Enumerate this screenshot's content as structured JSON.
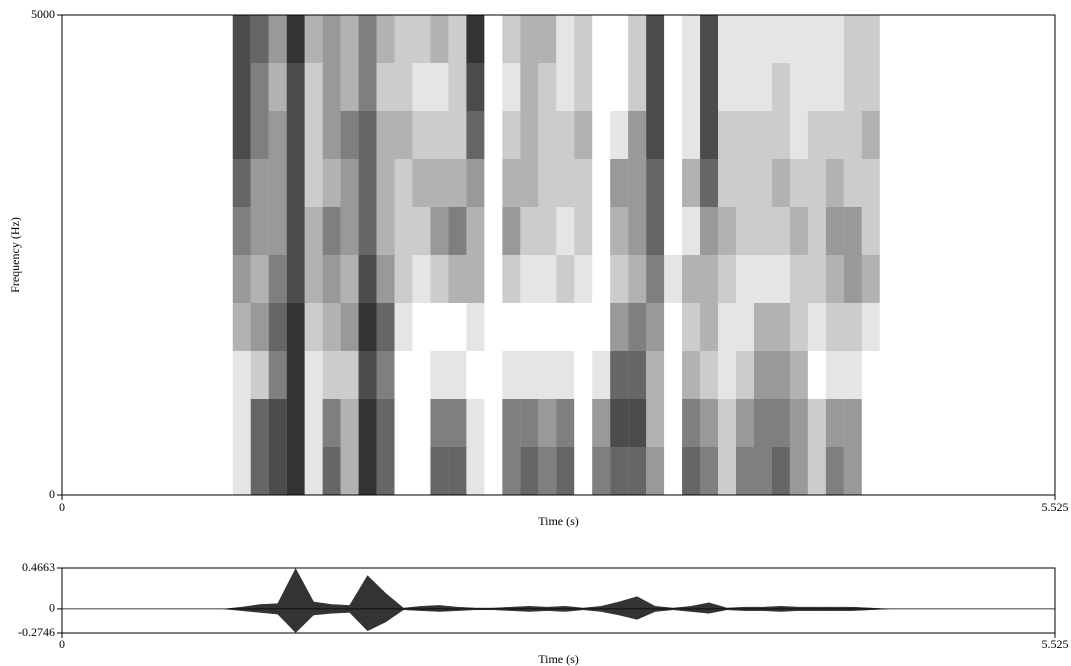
{
  "chart_data": [
    {
      "type": "heatmap",
      "x_label": "Time (s)",
      "y_label": "Frequency (Hz)",
      "xlim": [
        0,
        5.525
      ],
      "ylim": [
        0,
        5000
      ],
      "xticks": [
        0,
        5.525
      ],
      "yticks": [
        0,
        5000
      ],
      "x": [
        0.9,
        1.0,
        1.1,
        1.2,
        1.3,
        1.4,
        1.5,
        1.6,
        1.7,
        1.8,
        1.9,
        2.0,
        2.1,
        2.2,
        2.3,
        2.4,
        2.5,
        2.6,
        2.7,
        2.8,
        2.9,
        3.0,
        3.1,
        3.2,
        3.3,
        3.4,
        3.5,
        3.6,
        3.7,
        3.8,
        3.9,
        4.0,
        4.1,
        4.2,
        4.3,
        4.4,
        4.5,
        4.6
      ],
      "y": [
        250,
        750,
        1250,
        1750,
        2250,
        2750,
        3250,
        3750,
        4250,
        4750
      ],
      "z": [
        [
          0,
          0.1,
          0.6,
          0.7,
          0.8,
          0.1,
          0.6,
          0.3,
          0.8,
          0.6,
          0,
          0,
          0.6,
          0.6,
          0.1,
          0,
          0.5,
          0.6,
          0.5,
          0.6,
          0,
          0.5,
          0.6,
          0.6,
          0.4,
          0,
          0.6,
          0.5,
          0.2,
          0.5,
          0.5,
          0.6,
          0.4,
          0.2,
          0.5,
          0.4,
          0,
          0
        ],
        [
          0,
          0.1,
          0.6,
          0.7,
          0.8,
          0.1,
          0.5,
          0.3,
          0.8,
          0.6,
          0,
          0,
          0.5,
          0.5,
          0.1,
          0,
          0.5,
          0.5,
          0.4,
          0.5,
          0,
          0.4,
          0.7,
          0.7,
          0.3,
          0,
          0.5,
          0.4,
          0.2,
          0.4,
          0.5,
          0.5,
          0.4,
          0.2,
          0.4,
          0.4,
          0,
          0
        ],
        [
          0,
          0.1,
          0.2,
          0.5,
          0.8,
          0.1,
          0.2,
          0.2,
          0.7,
          0.5,
          0,
          0,
          0.1,
          0.1,
          0,
          0,
          0.1,
          0.1,
          0.1,
          0.1,
          0,
          0.1,
          0.6,
          0.6,
          0.3,
          0,
          0.3,
          0.2,
          0.1,
          0.2,
          0.4,
          0.4,
          0.3,
          0,
          0.1,
          0.1,
          0,
          0
        ],
        [
          0,
          0.3,
          0.4,
          0.6,
          0.8,
          0.2,
          0.3,
          0.4,
          0.8,
          0.6,
          0.1,
          0,
          0,
          0,
          0.1,
          0,
          0,
          0,
          0,
          0,
          0,
          0,
          0.4,
          0.5,
          0.4,
          0,
          0.2,
          0.3,
          0.1,
          0.1,
          0.3,
          0.3,
          0.2,
          0.1,
          0.2,
          0.2,
          0.1,
          0
        ],
        [
          0,
          0.4,
          0.3,
          0.5,
          0.7,
          0.3,
          0.4,
          0.3,
          0.7,
          0.4,
          0.2,
          0.1,
          0.2,
          0.3,
          0.3,
          0,
          0.2,
          0.1,
          0.1,
          0.2,
          0.1,
          0,
          0.2,
          0.3,
          0.5,
          0.1,
          0.3,
          0.3,
          0.2,
          0.1,
          0.1,
          0.1,
          0.2,
          0.2,
          0.3,
          0.4,
          0.3,
          0
        ],
        [
          0,
          0.5,
          0.4,
          0.4,
          0.7,
          0.3,
          0.5,
          0.4,
          0.6,
          0.3,
          0.2,
          0.2,
          0.4,
          0.5,
          0.3,
          0,
          0.4,
          0.2,
          0.2,
          0.1,
          0.2,
          0,
          0.3,
          0.4,
          0.6,
          0,
          0.1,
          0.4,
          0.3,
          0.2,
          0.2,
          0.2,
          0.3,
          0.2,
          0.4,
          0.4,
          0.2,
          0
        ],
        [
          0,
          0.6,
          0.4,
          0.4,
          0.7,
          0.2,
          0.3,
          0.4,
          0.6,
          0.3,
          0.2,
          0.3,
          0.3,
          0.3,
          0.4,
          0,
          0.3,
          0.3,
          0.2,
          0.2,
          0.2,
          0,
          0.4,
          0.4,
          0.6,
          0,
          0.3,
          0.6,
          0.2,
          0.2,
          0.2,
          0.3,
          0.2,
          0.2,
          0.3,
          0.2,
          0.2,
          0
        ],
        [
          0,
          0.7,
          0.5,
          0.4,
          0.7,
          0.2,
          0.4,
          0.5,
          0.6,
          0.3,
          0.3,
          0.2,
          0.2,
          0.2,
          0.6,
          0,
          0.2,
          0.3,
          0.2,
          0.2,
          0.3,
          0,
          0.1,
          0.4,
          0.7,
          0,
          0.1,
          0.7,
          0.2,
          0.2,
          0.2,
          0.2,
          0.1,
          0.2,
          0.2,
          0.2,
          0.3,
          0
        ],
        [
          0,
          0.7,
          0.5,
          0.3,
          0.7,
          0.2,
          0.4,
          0.3,
          0.5,
          0.2,
          0.2,
          0.1,
          0.1,
          0.2,
          0.7,
          0,
          0.1,
          0.3,
          0.2,
          0.1,
          0.2,
          0,
          0,
          0.2,
          0.7,
          0,
          0.1,
          0.7,
          0.1,
          0.1,
          0.1,
          0.2,
          0.1,
          0.1,
          0.1,
          0.2,
          0.2,
          0
        ],
        [
          0,
          0.7,
          0.6,
          0.4,
          0.8,
          0.3,
          0.4,
          0.3,
          0.5,
          0.3,
          0.2,
          0.2,
          0.3,
          0.2,
          0.8,
          0,
          0.2,
          0.3,
          0.3,
          0.1,
          0.2,
          0,
          0,
          0.2,
          0.7,
          0,
          0.1,
          0.7,
          0.1,
          0.1,
          0.1,
          0.1,
          0.1,
          0.1,
          0.1,
          0.2,
          0.2,
          0
        ]
      ],
      "color": "#000000"
    },
    {
      "type": "waveform",
      "x_label": "Time (s)",
      "xlim": [
        0,
        5.525
      ],
      "ylim": [
        -0.2746,
        0.4663
      ],
      "xticks": [
        0,
        5.525
      ],
      "yticks": [
        -0.2746,
        0,
        0.4663
      ],
      "x": [
        0.9,
        1.0,
        1.1,
        1.2,
        1.3,
        1.4,
        1.5,
        1.6,
        1.7,
        1.8,
        1.9,
        2.0,
        2.1,
        2.2,
        2.3,
        2.4,
        2.5,
        2.6,
        2.7,
        2.8,
        2.9,
        3.0,
        3.1,
        3.2,
        3.3,
        3.4,
        3.5,
        3.6,
        3.7,
        3.8,
        3.9,
        4.0,
        4.1,
        4.2,
        4.3,
        4.4,
        4.5,
        4.6
      ],
      "upper": [
        0,
        0.02,
        0.05,
        0.06,
        0.46,
        0.08,
        0.05,
        0.04,
        0.38,
        0.18,
        0.01,
        0.03,
        0.04,
        0.02,
        0.01,
        0.01,
        0.02,
        0.03,
        0.02,
        0.03,
        0.01,
        0.03,
        0.08,
        0.14,
        0.03,
        0.01,
        0.03,
        0.07,
        0.01,
        0.02,
        0.02,
        0.03,
        0.02,
        0.02,
        0.02,
        0.02,
        0.01,
        0
      ],
      "lower": [
        0,
        -0.02,
        -0.04,
        -0.06,
        -0.27,
        -0.07,
        -0.05,
        -0.04,
        -0.25,
        -0.15,
        -0.01,
        -0.02,
        -0.03,
        -0.02,
        -0.01,
        -0.01,
        -0.02,
        -0.03,
        -0.02,
        -0.03,
        -0.01,
        -0.03,
        -0.07,
        -0.12,
        -0.03,
        -0.01,
        -0.03,
        -0.05,
        -0.01,
        -0.02,
        -0.02,
        -0.03,
        -0.02,
        -0.02,
        -0.02,
        -0.02,
        -0.01,
        0
      ],
      "color": "#333333"
    }
  ]
}
